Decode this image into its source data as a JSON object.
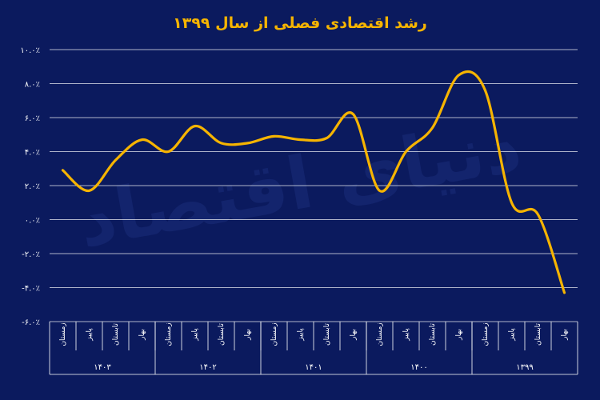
{
  "chart_data": {
    "type": "line",
    "title": "رشد اقتصادی فصلی از سال ۱۳۹۹",
    "xlabel": "",
    "ylabel": "",
    "ylim": [
      -6,
      10
    ],
    "y_ticks": [
      "۱۰.۰٪",
      "۸.۰٪",
      "۶.۰٪",
      "۴.۰٪",
      "۲.۰٪",
      "۰.۰٪",
      "-۲.۰٪",
      "-۴.۰٪",
      "-۶.۰٪"
    ],
    "y_tick_values": [
      10,
      8,
      6,
      4,
      2,
      0,
      -2,
      -4,
      -6
    ],
    "grid": true,
    "categories": [
      "بهار",
      "تابستان",
      "پاییز",
      "زمستان",
      "بهار",
      "تابستان",
      "پاییز",
      "زمستان",
      "بهار",
      "تابستان",
      "پاییز",
      "زمستان",
      "بهار",
      "تابستان",
      "پاییز",
      "زمستان",
      "بهار",
      "تابستان",
      "پاییز",
      "زمستان"
    ],
    "groups": [
      {
        "label": "۱۳۹۹",
        "span": 4
      },
      {
        "label": "۱۴۰۰",
        "span": 4
      },
      {
        "label": "۱۴۰۱",
        "span": 4
      },
      {
        "label": "۱۴۰۲",
        "span": 4
      },
      {
        "label": "۱۴۰۳",
        "span": 4
      }
    ],
    "series": [
      {
        "values": [
          -4.3,
          0.3,
          1.0,
          7.6,
          8.5,
          5.4,
          4.0,
          1.7,
          6.2,
          4.8,
          4.7,
          4.9,
          4.5,
          4.5,
          5.5,
          4.0,
          4.7,
          3.5,
          1.7,
          2.9
        ]
      }
    ],
    "colors": {
      "background": "#0b1a5e",
      "line": "#f6b400",
      "title": "#f6b400",
      "grid": "#ffffff",
      "text": "#ffffff"
    },
    "watermark": "دنیای اقتصاد"
  }
}
